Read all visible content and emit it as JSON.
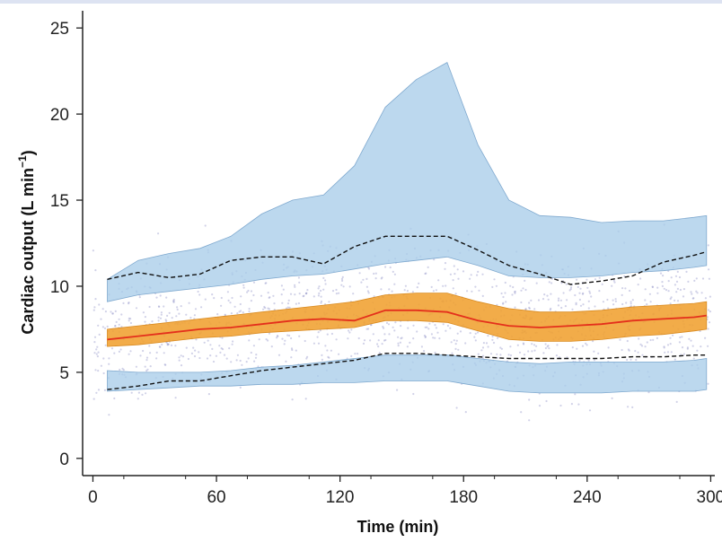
{
  "chart_data": {
    "type": "line",
    "xlabel": "Time (min)",
    "ylabel": "Cardiac output (L min",
    "ylabel_sup": "−1",
    "ylabel_close": ")",
    "xlim": [
      -5,
      302
    ],
    "ylim": [
      -1,
      26
    ],
    "xticks": [
      0,
      60,
      120,
      180,
      240,
      300
    ],
    "xticklabels": [
      "0",
      "60",
      "120",
      "180",
      "240",
      "300"
    ],
    "yticks": [
      0,
      5,
      10,
      15,
      20,
      25
    ],
    "yticklabels": [
      "0",
      "5",
      "10",
      "15",
      "20",
      "25"
    ],
    "x": [
      7,
      22,
      37,
      52,
      67,
      82,
      97,
      112,
      127,
      142,
      157,
      172,
      187,
      202,
      217,
      232,
      247,
      262,
      277,
      292,
      298
    ],
    "series": [
      {
        "role": "outer_band_upper",
        "color": "#a9cde9",
        "values": [
          10.4,
          11.5,
          11.9,
          12.2,
          12.9,
          14.2,
          15.0,
          15.3,
          17.0,
          20.4,
          22.0,
          23.0,
          18.2,
          15.0,
          14.1,
          14.0,
          13.7,
          13.8,
          13.8,
          14.0,
          14.1
        ]
      },
      {
        "role": "inner_band_upper",
        "color": "#a9cde9",
        "values": [
          9.1,
          9.5,
          9.7,
          9.9,
          10.1,
          10.4,
          10.6,
          10.7,
          11.0,
          11.3,
          11.5,
          11.7,
          11.2,
          10.6,
          10.5,
          10.5,
          10.6,
          10.8,
          10.9,
          11.1,
          11.2
        ]
      },
      {
        "role": "inner_band_lower",
        "color": "#a9cde9",
        "values": [
          5.1,
          5.0,
          5.0,
          5.0,
          5.1,
          5.3,
          5.4,
          5.6,
          5.8,
          6.0,
          6.0,
          6.0,
          5.8,
          5.6,
          5.5,
          5.6,
          5.6,
          5.6,
          5.6,
          5.7,
          5.8
        ]
      },
      {
        "role": "outer_band_lower",
        "color": "#a9cde9",
        "values": [
          3.9,
          4.0,
          4.1,
          4.2,
          4.2,
          4.3,
          4.3,
          4.4,
          4.4,
          4.5,
          4.5,
          4.5,
          4.2,
          3.9,
          3.8,
          3.8,
          3.8,
          3.9,
          3.9,
          3.9,
          4.0
        ]
      },
      {
        "role": "upper_percentile_dashed",
        "color": "#111111",
        "values": [
          10.4,
          10.8,
          10.5,
          10.7,
          11.5,
          11.7,
          11.7,
          11.3,
          12.3,
          12.9,
          12.9,
          12.9,
          12.1,
          11.2,
          10.7,
          10.1,
          10.3,
          10.6,
          11.4,
          11.8,
          12.0
        ]
      },
      {
        "role": "lower_percentile_dashed",
        "color": "#111111",
        "values": [
          4.0,
          4.2,
          4.5,
          4.5,
          4.8,
          5.1,
          5.3,
          5.5,
          5.7,
          6.1,
          6.1,
          6.0,
          5.9,
          5.8,
          5.8,
          5.8,
          5.8,
          5.9,
          5.9,
          6.0,
          6.0
        ]
      },
      {
        "role": "median_band_upper",
        "color": "#f0a030",
        "values": [
          7.5,
          7.7,
          7.9,
          8.1,
          8.3,
          8.5,
          8.7,
          8.9,
          9.1,
          9.5,
          9.6,
          9.6,
          9.1,
          8.7,
          8.5,
          8.5,
          8.6,
          8.8,
          8.9,
          9.0,
          9.1
        ]
      },
      {
        "role": "median_band_lower",
        "color": "#f0a030",
        "values": [
          6.5,
          6.6,
          6.8,
          7.0,
          7.1,
          7.3,
          7.4,
          7.5,
          7.6,
          8.0,
          8.0,
          7.9,
          7.4,
          6.9,
          6.8,
          6.8,
          6.9,
          7.1,
          7.2,
          7.4,
          7.5
        ]
      },
      {
        "role": "median",
        "color": "#e4301c",
        "values": [
          6.9,
          7.1,
          7.3,
          7.5,
          7.6,
          7.8,
          8.0,
          8.1,
          8.0,
          8.6,
          8.6,
          8.5,
          8.0,
          7.7,
          7.6,
          7.7,
          7.8,
          8.0,
          8.1,
          8.2,
          8.3
        ]
      }
    ],
    "scatter_color": "#9a9ccd",
    "grid": false
  }
}
